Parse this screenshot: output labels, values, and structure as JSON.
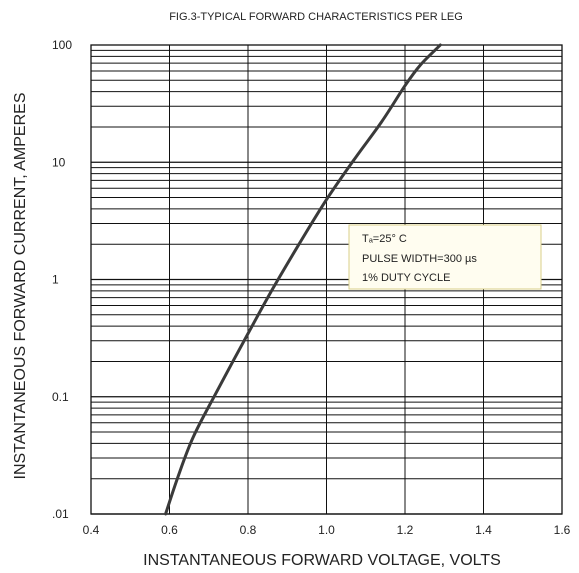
{
  "chart_data": {
    "type": "line",
    "title": "FIG.3-TYPICAL FORWARD CHARACTERISTICS PER LEG",
    "xlabel": "INSTANTANEOUS FORWARD VOLTAGE, VOLTS",
    "ylabel": "INSTANTANEOUS FORWARD CURRENT, AMPERES",
    "xlim": [
      0.4,
      1.6
    ],
    "ylim": [
      0.01,
      100
    ],
    "yscale": "log",
    "grid": true,
    "x_ticks": [
      0.4,
      0.6,
      0.8,
      1.0,
      1.2,
      1.4,
      1.6
    ],
    "x_tick_labels": [
      "0.4",
      "0.6",
      "0.8",
      "1.0",
      "1.2",
      "1.4",
      "1.6"
    ],
    "y_ticks": [
      0.01,
      0.1,
      1,
      10,
      100
    ],
    "y_tick_labels": [
      ".01",
      "0.1",
      "1",
      "10",
      "100"
    ],
    "series": [
      {
        "x": [
          0.59,
          0.62,
          0.66,
          0.72,
          0.79,
          0.86,
          0.93,
          1.0,
          1.07,
          1.14,
          1.2,
          1.24,
          1.29
        ],
        "y": [
          0.01,
          0.02,
          0.045,
          0.11,
          0.3,
          0.8,
          2.0,
          4.8,
          10.5,
          22.0,
          45.0,
          68.0,
          100.0
        ]
      }
    ],
    "annotation": {
      "lines": [
        "Tₐ=25° C",
        "PULSE WIDTH=300 µs",
        "1% DUTY CYCLE"
      ]
    },
    "colors": {
      "curve": "#3a3a3a",
      "grid": "#111111",
      "annotation_bg": "#fffdf0",
      "annotation_border": "#d8cf8a"
    }
  }
}
